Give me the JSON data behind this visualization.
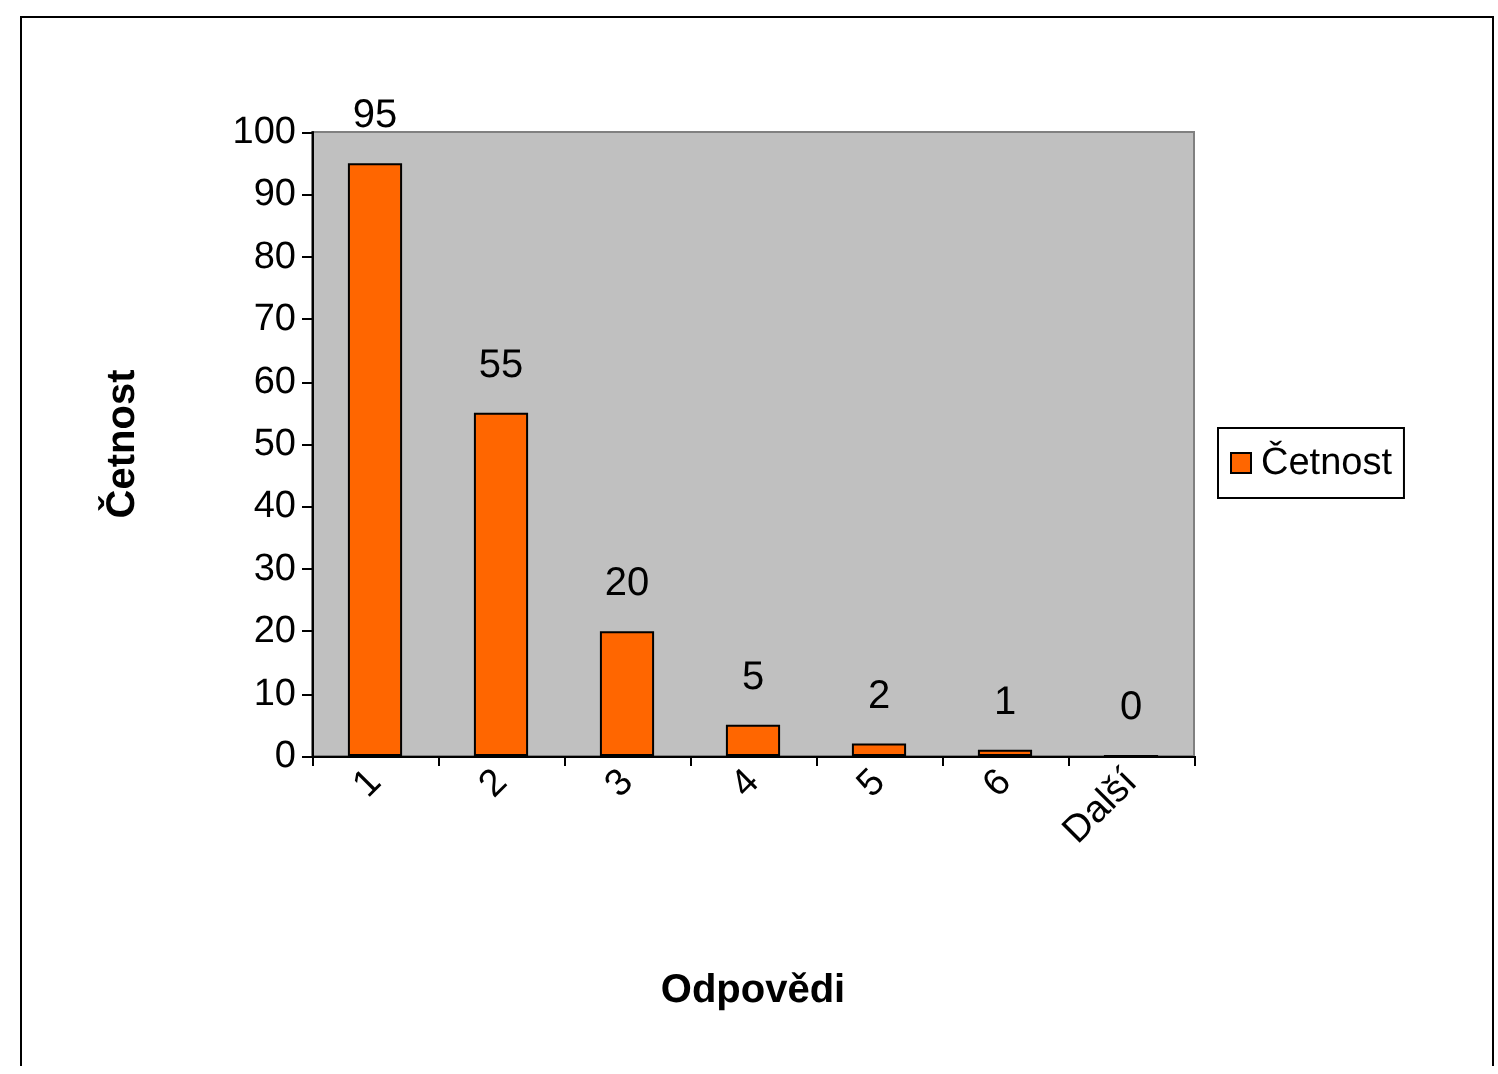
{
  "chart_data": {
    "type": "bar",
    "xlabel": "Odpovědi",
    "ylabel": "Četnost",
    "categories": [
      "1",
      "2",
      "3",
      "4",
      "5",
      "6",
      "Další"
    ],
    "series": [
      {
        "name": "Četnost",
        "color": "#ff6600",
        "values": [
          95,
          55,
          20,
          5,
          2,
          1,
          0
        ]
      }
    ],
    "ylim": [
      0,
      100
    ],
    "yticks": [
      0,
      10,
      20,
      30,
      40,
      50,
      60,
      70,
      80,
      90,
      100
    ],
    "grid": false,
    "legend": "right",
    "data_labels": true
  }
}
